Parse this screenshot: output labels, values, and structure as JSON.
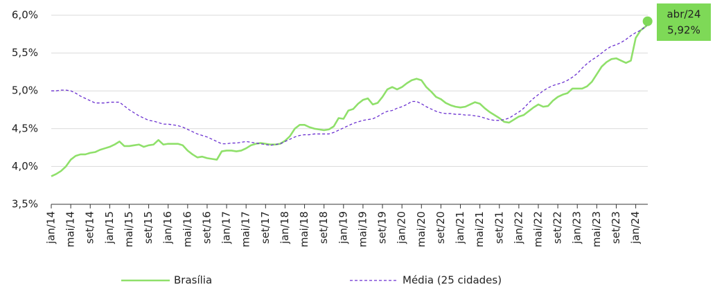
{
  "chart_data": {
    "type": "line",
    "categories": [
      "jan/14",
      null,
      null,
      null,
      "mai/14",
      null,
      null,
      null,
      "set/14",
      null,
      null,
      null,
      "jan/15",
      null,
      null,
      null,
      "mai/15",
      null,
      null,
      null,
      "set/15",
      null,
      null,
      null,
      "jan/16",
      null,
      null,
      null,
      "mai/16",
      null,
      null,
      null,
      "set/16",
      null,
      null,
      null,
      "jan/17",
      null,
      null,
      null,
      "mai/17",
      null,
      null,
      null,
      "set/17",
      null,
      null,
      null,
      "jan/18",
      null,
      null,
      null,
      "mai/18",
      null,
      null,
      null,
      "set/18",
      null,
      null,
      null,
      "jan/19",
      null,
      null,
      null,
      "mai/19",
      null,
      null,
      null,
      "set/19",
      null,
      null,
      null,
      "jan/20",
      null,
      null,
      null,
      "mai/20",
      null,
      null,
      null,
      "set/20",
      null,
      null,
      null,
      "jan/21",
      null,
      null,
      null,
      "mai/21",
      null,
      null,
      null,
      "set/21",
      null,
      null,
      null,
      "jan/22",
      null,
      null,
      null,
      "mai/22",
      null,
      null,
      null,
      "set/22",
      null,
      null,
      null,
      "jan/23",
      null,
      null,
      null,
      "mai/23",
      null,
      null,
      null,
      "set/23",
      null,
      null,
      null,
      "jan/24",
      null,
      null,
      null
    ],
    "series": [
      {
        "name": "Brasília",
        "color": "#8fe06a",
        "dashed": false,
        "values": [
          3.87,
          3.9,
          3.94,
          4.0,
          4.09,
          4.14,
          4.16,
          4.16,
          4.18,
          4.19,
          4.22,
          4.24,
          4.26,
          4.29,
          4.33,
          4.27,
          4.27,
          4.28,
          4.29,
          4.26,
          4.28,
          4.29,
          4.35,
          4.29,
          4.3,
          4.3,
          4.3,
          4.28,
          4.21,
          4.16,
          4.12,
          4.13,
          4.11,
          4.1,
          4.09,
          4.2,
          4.21,
          4.21,
          4.2,
          4.21,
          4.24,
          4.28,
          4.3,
          4.31,
          4.3,
          4.29,
          4.29,
          4.3,
          4.34,
          4.4,
          4.5,
          4.55,
          4.55,
          4.52,
          4.5,
          4.49,
          4.48,
          4.49,
          4.53,
          4.64,
          4.63,
          4.74,
          4.76,
          4.83,
          4.88,
          4.9,
          4.82,
          4.84,
          4.92,
          5.02,
          5.05,
          5.02,
          5.05,
          5.1,
          5.14,
          5.16,
          5.14,
          5.05,
          4.99,
          4.92,
          4.89,
          4.84,
          4.81,
          4.79,
          4.78,
          4.79,
          4.82,
          4.85,
          4.83,
          4.77,
          4.72,
          4.68,
          4.64,
          4.59,
          4.58,
          4.62,
          4.66,
          4.68,
          4.73,
          4.78,
          4.82,
          4.79,
          4.8,
          4.87,
          4.92,
          4.95,
          4.97,
          5.03,
          5.03,
          5.03,
          5.06,
          5.12,
          5.22,
          5.32,
          5.38,
          5.42,
          5.43,
          5.4,
          5.37,
          5.4,
          5.7,
          5.8,
          5.85,
          5.92
        ]
      },
      {
        "name": "Média (25 cidades)",
        "color": "#6a2fd0",
        "dashed": true,
        "values": [
          5.0,
          5.0,
          5.01,
          5.01,
          5.0,
          4.97,
          4.93,
          4.9,
          4.87,
          4.84,
          4.84,
          4.84,
          4.85,
          4.85,
          4.85,
          4.8,
          4.75,
          4.71,
          4.67,
          4.64,
          4.61,
          4.6,
          4.58,
          4.56,
          4.56,
          4.55,
          4.54,
          4.52,
          4.49,
          4.46,
          4.43,
          4.41,
          4.39,
          4.36,
          4.33,
          4.3,
          4.3,
          4.31,
          4.31,
          4.32,
          4.33,
          4.32,
          4.31,
          4.3,
          4.29,
          4.28,
          4.29,
          4.3,
          4.33,
          4.36,
          4.39,
          4.41,
          4.42,
          4.42,
          4.43,
          4.43,
          4.43,
          4.43,
          4.45,
          4.48,
          4.51,
          4.54,
          4.57,
          4.59,
          4.61,
          4.62,
          4.63,
          4.66,
          4.7,
          4.73,
          4.74,
          4.77,
          4.79,
          4.82,
          4.86,
          4.86,
          4.83,
          4.79,
          4.76,
          4.73,
          4.71,
          4.7,
          4.7,
          4.69,
          4.69,
          4.68,
          4.68,
          4.67,
          4.66,
          4.64,
          4.62,
          4.61,
          4.61,
          4.62,
          4.64,
          4.68,
          4.72,
          4.77,
          4.84,
          4.9,
          4.95,
          5.0,
          5.04,
          5.07,
          5.09,
          5.11,
          5.14,
          5.18,
          5.23,
          5.3,
          5.36,
          5.41,
          5.45,
          5.5,
          5.55,
          5.59,
          5.61,
          5.64,
          5.68,
          5.73,
          5.77,
          5.8,
          5.85,
          5.9
        ]
      }
    ],
    "annotation": {
      "x_label": "abr/24",
      "label": "5,92%",
      "value": 5.92,
      "color": "#7ed957"
    },
    "ylim": [
      3.5,
      6.0
    ],
    "yticks": [
      {
        "value": 3.5,
        "label": "3,5%"
      },
      {
        "value": 4.0,
        "label": "4,0%"
      },
      {
        "value": 4.5,
        "label": "4,5%"
      },
      {
        "value": 5.0,
        "label": "5,0%"
      },
      {
        "value": 5.5,
        "label": "5,5%"
      },
      {
        "value": 6.0,
        "label": "6,0%"
      }
    ],
    "grid": true
  }
}
